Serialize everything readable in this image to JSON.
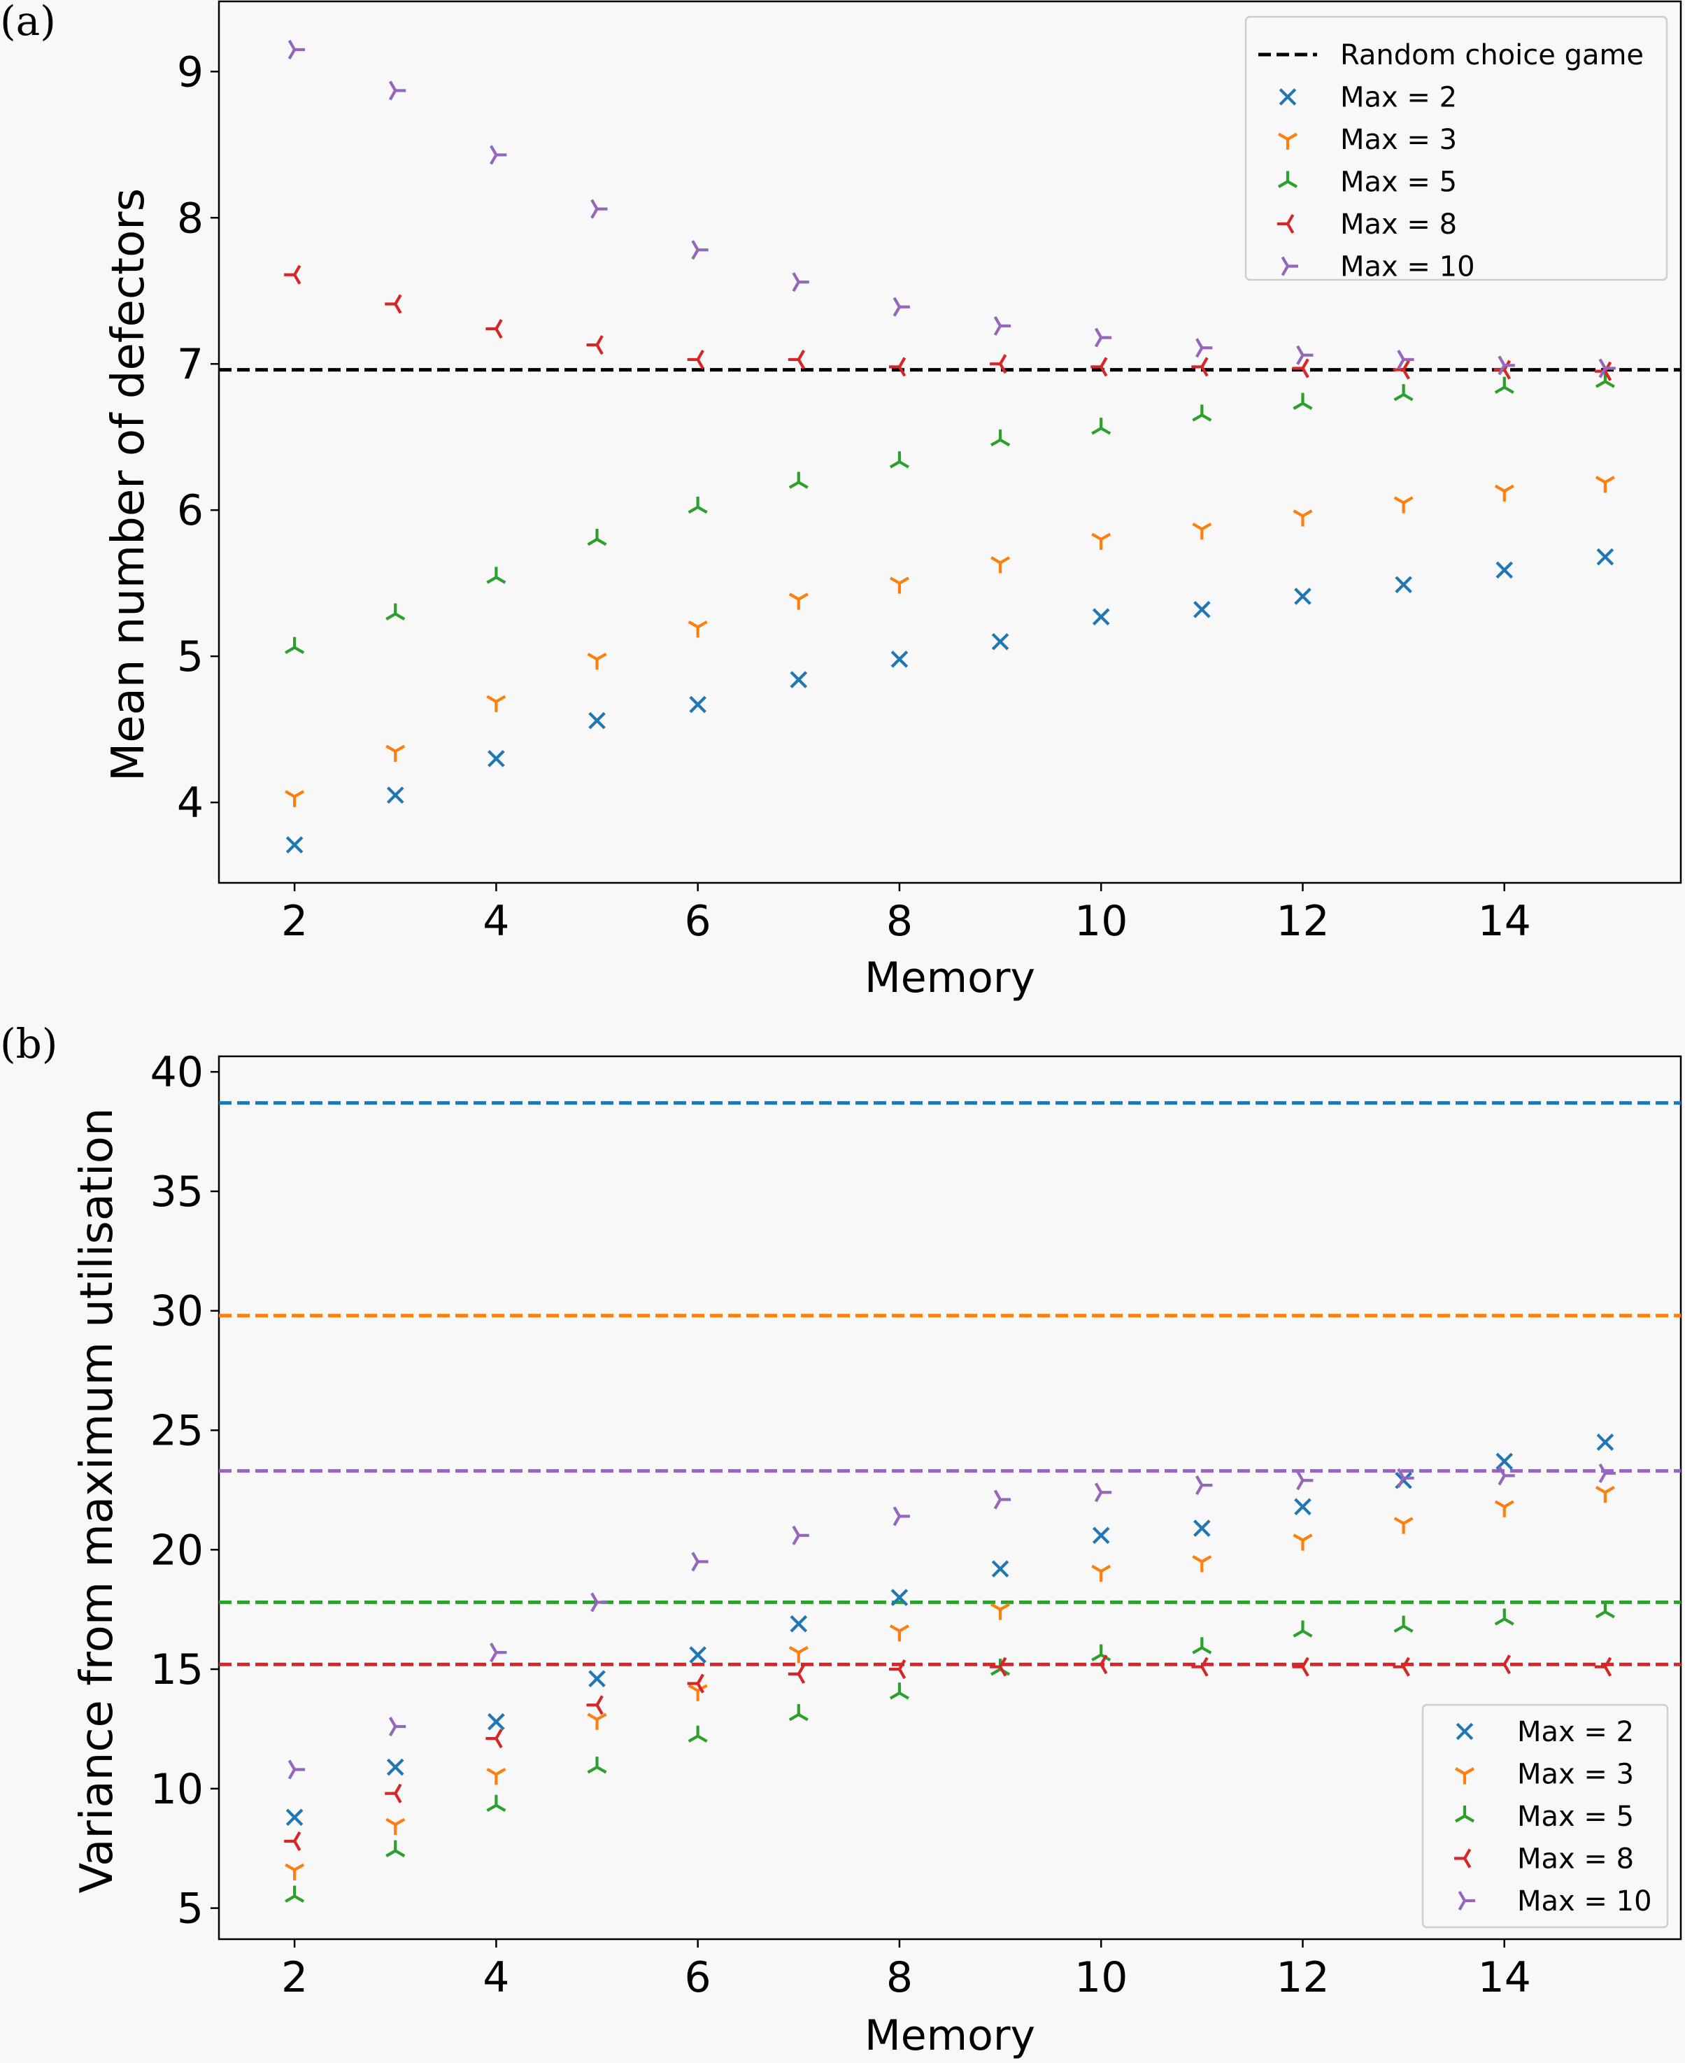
{
  "colors": {
    "background": "#f8f8f8",
    "axis": "#000000",
    "random": "#000000",
    "max2": "#1f77b4",
    "max3": "#ff7f0e",
    "max5": "#2ca02c",
    "max8": "#d62728",
    "max10": "#9467bd"
  },
  "chart_data": [
    {
      "panel_label": "(a)",
      "type": "scatter",
      "xlabel": "Memory",
      "ylabel": "Mean number of defectors",
      "xlim": [
        1.25,
        15.75
      ],
      "ylim": [
        3.45,
        9.48
      ],
      "xticks": [
        2,
        4,
        6,
        8,
        10,
        12,
        14
      ],
      "yticks": [
        4,
        5,
        6,
        7,
        8,
        9
      ],
      "x": [
        2,
        3,
        4,
        5,
        6,
        7,
        8,
        9,
        10,
        11,
        12,
        13,
        14,
        15
      ],
      "legend": {
        "position": "top-right",
        "entries": [
          {
            "label": "Random choice game",
            "marker": "dashed",
            "color_key": "random"
          },
          {
            "label": "Max = 2",
            "marker": "x",
            "color_key": "max2"
          },
          {
            "label": "Max = 3",
            "marker": "tri_down",
            "color_key": "max3"
          },
          {
            "label": "Max = 5",
            "marker": "tri_up",
            "color_key": "max5"
          },
          {
            "label": "Max = 8",
            "marker": "tri_left",
            "color_key": "max8"
          },
          {
            "label": "Max = 10",
            "marker": "tri_right",
            "color_key": "max10"
          }
        ]
      },
      "hlines": [
        {
          "y": 6.96,
          "color_key": "random"
        }
      ],
      "series": [
        {
          "name": "Max = 2",
          "marker": "x",
          "color_key": "max2",
          "values": [
            3.71,
            4.05,
            4.3,
            4.56,
            4.67,
            4.84,
            4.98,
            5.1,
            5.27,
            5.32,
            5.41,
            5.49,
            5.59,
            5.68
          ]
        },
        {
          "name": "Max = 3",
          "marker": "tri_down",
          "color_key": "max3",
          "values": [
            4.04,
            4.35,
            4.69,
            4.98,
            5.2,
            5.39,
            5.5,
            5.64,
            5.8,
            5.87,
            5.96,
            6.05,
            6.13,
            6.19
          ]
        },
        {
          "name": "Max = 5",
          "marker": "tri_up",
          "color_key": "max5",
          "values": [
            5.06,
            5.29,
            5.54,
            5.8,
            6.02,
            6.19,
            6.33,
            6.48,
            6.56,
            6.65,
            6.73,
            6.79,
            6.84,
            6.88
          ]
        },
        {
          "name": "Max = 8",
          "marker": "tri_left",
          "color_key": "max8",
          "values": [
            7.61,
            7.41,
            7.24,
            7.13,
            7.03,
            7.03,
            6.98,
            7.0,
            6.98,
            6.98,
            6.97,
            6.96,
            6.96,
            6.95
          ]
        },
        {
          "name": "Max = 10",
          "marker": "tri_right",
          "color_key": "max10",
          "values": [
            9.15,
            8.87,
            8.43,
            8.06,
            7.78,
            7.56,
            7.39,
            7.26,
            7.18,
            7.11,
            7.06,
            7.03,
            6.99,
            6.97
          ]
        }
      ]
    },
    {
      "panel_label": "(b)",
      "type": "scatter",
      "xlabel": "Memory",
      "ylabel": "Variance from maximum utilisation",
      "xlim": [
        1.25,
        15.75
      ],
      "ylim": [
        3.7,
        40.65
      ],
      "xticks": [
        2,
        4,
        6,
        8,
        10,
        12,
        14
      ],
      "yticks": [
        5,
        10,
        15,
        20,
        25,
        30,
        35,
        40
      ],
      "x": [
        2,
        3,
        4,
        5,
        6,
        7,
        8,
        9,
        10,
        11,
        12,
        13,
        14,
        15
      ],
      "legend": {
        "position": "bottom-right",
        "entries": [
          {
            "label": "Max = 2",
            "marker": "x",
            "color_key": "max2"
          },
          {
            "label": "Max = 3",
            "marker": "tri_down",
            "color_key": "max3"
          },
          {
            "label": "Max = 5",
            "marker": "tri_up",
            "color_key": "max5"
          },
          {
            "label": "Max = 8",
            "marker": "tri_left",
            "color_key": "max8"
          },
          {
            "label": "Max = 10",
            "marker": "tri_right",
            "color_key": "max10"
          }
        ]
      },
      "hlines": [
        {
          "y": 38.7,
          "color_key": "max2"
        },
        {
          "y": 29.8,
          "color_key": "max3"
        },
        {
          "y": 23.3,
          "color_key": "max10"
        },
        {
          "y": 17.8,
          "color_key": "max5"
        },
        {
          "y": 15.2,
          "color_key": "max8"
        }
      ],
      "series": [
        {
          "name": "Max = 2",
          "marker": "x",
          "color_key": "max2",
          "values": [
            8.8,
            10.9,
            12.8,
            14.6,
            15.6,
            16.9,
            18.0,
            19.2,
            20.6,
            20.9,
            21.8,
            22.9,
            23.7,
            24.5
          ]
        },
        {
          "name": "Max = 3",
          "marker": "tri_down",
          "color_key": "max3",
          "values": [
            6.6,
            8.5,
            10.6,
            12.9,
            14.1,
            15.7,
            16.6,
            17.5,
            19.1,
            19.5,
            20.4,
            21.1,
            21.8,
            22.4
          ]
        },
        {
          "name": "Max = 5",
          "marker": "tri_up",
          "color_key": "max5",
          "values": [
            5.5,
            7.4,
            9.3,
            10.9,
            12.2,
            13.1,
            14.0,
            15.0,
            15.6,
            15.9,
            16.6,
            16.8,
            17.1,
            17.4
          ]
        },
        {
          "name": "Max = 8",
          "marker": "tri_left",
          "color_key": "max8",
          "values": [
            7.8,
            9.8,
            12.1,
            13.5,
            14.4,
            14.8,
            15.0,
            15.1,
            15.2,
            15.1,
            15.1,
            15.1,
            15.2,
            15.1
          ]
        },
        {
          "name": "Max = 10",
          "marker": "tri_right",
          "color_key": "max10",
          "values": [
            10.8,
            12.6,
            15.7,
            17.8,
            19.5,
            20.6,
            21.4,
            22.1,
            22.4,
            22.7,
            22.9,
            23.0,
            23.1,
            23.2
          ]
        }
      ]
    }
  ]
}
